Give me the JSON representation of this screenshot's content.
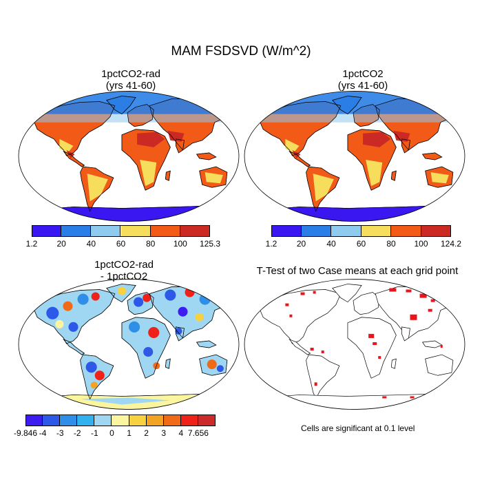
{
  "figure": {
    "title": "MAM FSDSVD (W/m^2)",
    "note": "Cells are significant at 0.1 level"
  },
  "colors": {
    "abs_levels": [
      "#3a16f0",
      "#2a7ee6",
      "#8ecbee",
      "#f6dd5c",
      "#f25a17",
      "#cb2a24"
    ],
    "diff_levels": [
      "#3c1cf0",
      "#2d58e8",
      "#2f8ee8",
      "#2fb2ee",
      "#9fd7f2",
      "#fcf5a0",
      "#f8d13f",
      "#f3a323",
      "#f16a18",
      "#ee2218",
      "#cc2a2a"
    ],
    "significance": "#e8161b",
    "coast": "#000000"
  },
  "chart_data": [
    {
      "type": "heatmap",
      "title": "1pctCO2-rad",
      "subtitle": "(yrs 41-60)",
      "colorbar_ticks": [
        "1.2",
        "20",
        "40",
        "60",
        "80",
        "100",
        "125.3"
      ],
      "range": [
        1.2,
        125.3
      ]
    },
    {
      "type": "heatmap",
      "title": "1pctCO2",
      "subtitle": "(yrs 41-60)",
      "colorbar_ticks": [
        "1.2",
        "20",
        "40",
        "60",
        "80",
        "100",
        "124.2"
      ],
      "range": [
        1.2,
        124.2
      ]
    },
    {
      "type": "heatmap",
      "title": "1pctCO2-rad",
      "subtitle": "- 1pctCO2",
      "colorbar_ticks": [
        "-9.846",
        "-4",
        "-3",
        "-2",
        "-1",
        "0",
        "1",
        "2",
        "3",
        "4",
        "7.656"
      ],
      "range": [
        -9.846,
        7.656
      ]
    },
    {
      "type": "heatmap",
      "title": "T-Test of two Case means at each grid point",
      "subtitle": ""
    }
  ]
}
